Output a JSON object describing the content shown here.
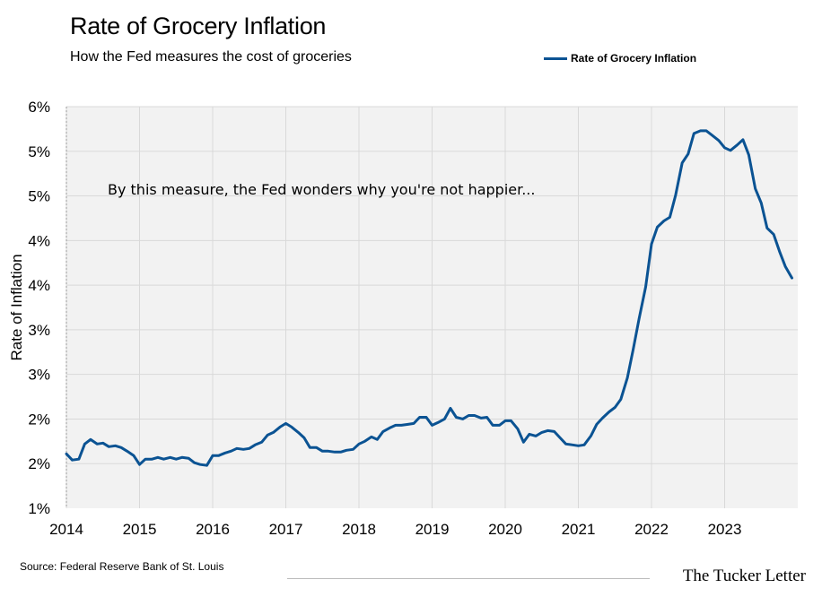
{
  "header": {
    "title": "Rate of Grocery Inflation",
    "subtitle": "How the Fed measures the cost of groceries"
  },
  "footer": {
    "source": "Source: Federal Reserve Bank of St. Louis",
    "brand": "The Tucker Letter"
  },
  "colors": {
    "line": "#0b5393",
    "plot_background": "#f2f2f2",
    "grid": "#d9d9d9"
  },
  "chart_data": {
    "type": "line",
    "title": "Rate of Grocery Inflation",
    "subtitle": "How the Fed measures the cost of groceries",
    "xlabel": "",
    "ylabel": "Rate of Inflation",
    "x_tick_labels": [
      "2014",
      "2015",
      "2016",
      "2017",
      "2018",
      "2019",
      "2020",
      "2021",
      "2022",
      "2023"
    ],
    "y_tick_labels": [
      "1%",
      "2%",
      "2%",
      "3%",
      "3%",
      "4%",
      "4%",
      "5%",
      "5%",
      "6%"
    ],
    "xlim": [
      2014.0,
      2024.0
    ],
    "ylim": [
      1.0,
      5.5
    ],
    "grid": true,
    "legend": {
      "position": "top-right",
      "entries": [
        "Rate of Grocery Inflation"
      ]
    },
    "annotations": [
      "By this measure, the Fed wonders why you're not happier..."
    ],
    "series": [
      {
        "name": "Rate of Grocery Inflation",
        "x": [
          2014.0,
          2014.08,
          2014.17,
          2014.25,
          2014.33,
          2014.42,
          2014.5,
          2014.58,
          2014.67,
          2014.75,
          2014.83,
          2014.92,
          2015.0,
          2015.08,
          2015.17,
          2015.25,
          2015.33,
          2015.42,
          2015.5,
          2015.58,
          2015.67,
          2015.75,
          2015.83,
          2015.92,
          2016.0,
          2016.08,
          2016.17,
          2016.25,
          2016.33,
          2016.42,
          2016.5,
          2016.58,
          2016.67,
          2016.75,
          2016.83,
          2016.92,
          2017.0,
          2017.08,
          2017.17,
          2017.25,
          2017.33,
          2017.42,
          2017.5,
          2017.58,
          2017.67,
          2017.75,
          2017.83,
          2017.92,
          2018.0,
          2018.08,
          2018.17,
          2018.25,
          2018.33,
          2018.42,
          2018.5,
          2018.58,
          2018.67,
          2018.75,
          2018.83,
          2018.92,
          2019.0,
          2019.08,
          2019.17,
          2019.25,
          2019.33,
          2019.42,
          2019.5,
          2019.58,
          2019.67,
          2019.75,
          2019.83,
          2019.92,
          2020.0,
          2020.08,
          2020.17,
          2020.25,
          2020.33,
          2020.42,
          2020.5,
          2020.58,
          2020.67,
          2020.75,
          2020.83,
          2020.92,
          2021.0,
          2021.08,
          2021.17,
          2021.25,
          2021.33,
          2021.42,
          2021.5,
          2021.58,
          2021.67,
          2021.75,
          2021.83,
          2021.92,
          2022.0,
          2022.08,
          2022.17,
          2022.25,
          2022.33,
          2022.42,
          2022.5,
          2022.58,
          2022.67,
          2022.75,
          2022.83,
          2022.92,
          2023.0,
          2023.08,
          2023.17,
          2023.25,
          2023.33,
          2023.42,
          2023.5,
          2023.58,
          2023.67,
          2023.75,
          2023.83,
          2023.92
        ],
        "values": [
          1.61,
          1.54,
          1.55,
          1.72,
          1.77,
          1.72,
          1.73,
          1.69,
          1.7,
          1.68,
          1.64,
          1.59,
          1.49,
          1.55,
          1.55,
          1.57,
          1.55,
          1.57,
          1.55,
          1.57,
          1.56,
          1.51,
          1.49,
          1.48,
          1.59,
          1.59,
          1.62,
          1.64,
          1.67,
          1.66,
          1.67,
          1.71,
          1.74,
          1.82,
          1.85,
          1.91,
          1.95,
          1.91,
          1.85,
          1.79,
          1.68,
          1.68,
          1.64,
          1.64,
          1.63,
          1.63,
          1.65,
          1.66,
          1.72,
          1.75,
          1.8,
          1.77,
          1.86,
          1.9,
          1.93,
          1.93,
          1.94,
          1.95,
          2.02,
          2.02,
          1.93,
          1.96,
          2.0,
          2.12,
          2.02,
          2.0,
          2.04,
          2.04,
          2.01,
          2.02,
          1.93,
          1.93,
          1.98,
          1.98,
          1.89,
          1.74,
          1.83,
          1.81,
          1.85,
          1.87,
          1.86,
          1.79,
          1.72,
          1.71,
          1.7,
          1.71,
          1.81,
          1.94,
          2.01,
          2.08,
          2.13,
          2.22,
          2.46,
          2.78,
          3.12,
          3.48,
          3.96,
          4.15,
          4.22,
          4.26,
          4.51,
          4.87,
          4.97,
          5.2,
          5.23,
          5.23,
          5.18,
          5.12,
          5.04,
          5.01,
          5.07,
          5.13,
          4.96,
          4.58,
          4.42,
          4.14,
          4.07,
          3.88,
          3.71,
          3.58
        ]
      }
    ]
  }
}
